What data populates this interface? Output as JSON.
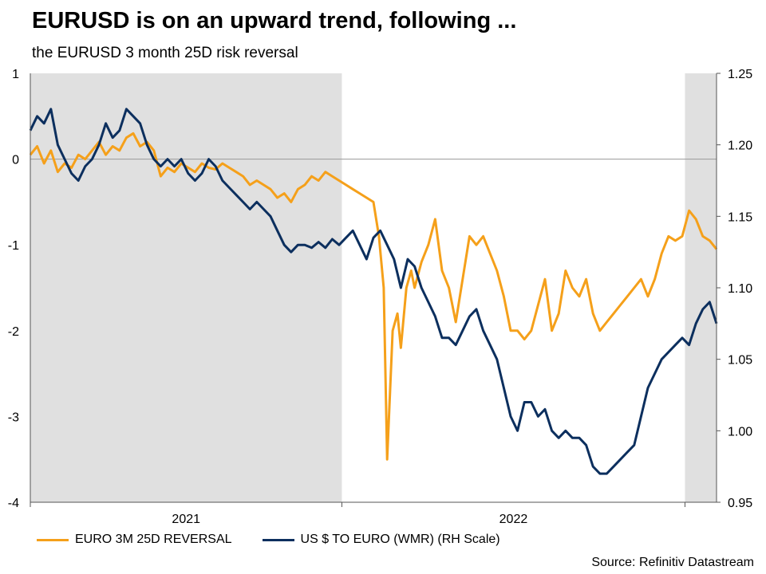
{
  "title": "EURUSD is on an upward trend, following ...",
  "subtitle": "the EURUSD 3 month 25D risk reversal",
  "source": "Source: Refinitiv Datastream",
  "chart_data": {
    "type": "line",
    "x_labels": [
      "2021",
      "2022"
    ],
    "left_axis": {
      "ylim": [
        -4,
        1
      ],
      "ticks": [
        "1",
        "0",
        "-1",
        "-2",
        "-3",
        "-4"
      ],
      "tick_values": [
        1,
        0,
        -1,
        -2,
        -3,
        -4
      ]
    },
    "right_axis": {
      "ylim": [
        0.95,
        1.25
      ],
      "ticks": [
        "1.25",
        "1.20",
        "1.15",
        "1.10",
        "1.05",
        "1.00",
        "0.95"
      ],
      "tick_values": [
        1.25,
        1.2,
        1.15,
        1.1,
        1.05,
        1.0,
        0.95
      ]
    },
    "x_range": [
      0,
      100
    ],
    "year_boundaries": [
      0,
      45.4,
      95.4
    ],
    "shaded_ranges": [
      [
        0,
        45.4
      ],
      [
        95.4,
        100
      ]
    ],
    "series": [
      {
        "name": "EURO 3M 25D REVERSAL",
        "axis": "left",
        "color": "#f5a01a",
        "x": [
          0,
          1,
          2,
          3,
          4,
          5,
          6,
          7,
          8,
          9,
          10,
          11,
          12,
          13,
          14,
          15,
          16,
          17,
          18,
          19,
          20,
          21,
          22,
          23,
          24,
          25,
          26,
          27,
          28,
          29,
          30,
          31,
          32,
          33,
          34,
          35,
          36,
          37,
          38,
          39,
          40,
          41,
          42,
          43,
          44,
          45,
          46,
          47,
          48,
          49,
          50,
          50.8,
          51.5,
          52,
          52.8,
          53.5,
          54,
          54.8,
          55.5,
          56,
          57,
          58,
          59,
          60,
          61,
          62,
          63,
          64,
          65,
          66,
          67,
          68,
          69,
          70,
          71,
          72,
          73,
          74,
          75,
          76,
          77,
          78,
          79,
          80,
          81,
          82,
          83,
          84,
          85,
          86,
          87,
          88,
          89,
          90,
          91,
          92,
          93,
          94,
          95,
          96,
          97,
          98,
          99,
          100
        ],
        "values": [
          0.05,
          0.15,
          -0.05,
          0.1,
          -0.15,
          -0.05,
          -0.1,
          0.05,
          0.0,
          0.1,
          0.2,
          0.05,
          0.15,
          0.1,
          0.25,
          0.3,
          0.15,
          0.2,
          0.1,
          -0.2,
          -0.1,
          -0.15,
          -0.05,
          -0.1,
          -0.15,
          -0.05,
          -0.1,
          -0.12,
          -0.05,
          -0.1,
          -0.15,
          -0.2,
          -0.3,
          -0.25,
          -0.3,
          -0.35,
          -0.45,
          -0.4,
          -0.5,
          -0.35,
          -0.3,
          -0.2,
          -0.25,
          -0.15,
          -0.2,
          -0.25,
          -0.3,
          -0.35,
          -0.4,
          -0.45,
          -0.5,
          -0.9,
          -1.5,
          -3.5,
          -2.0,
          -1.8,
          -2.2,
          -1.5,
          -1.3,
          -1.5,
          -1.2,
          -1.0,
          -0.7,
          -1.3,
          -1.5,
          -1.9,
          -1.4,
          -0.9,
          -1.0,
          -0.9,
          -1.1,
          -1.3,
          -1.6,
          -2.0,
          -2.0,
          -2.1,
          -2.0,
          -1.7,
          -1.4,
          -2.0,
          -1.8,
          -1.3,
          -1.5,
          -1.6,
          -1.4,
          -1.8,
          -2.0,
          -1.9,
          -1.8,
          -1.7,
          -1.6,
          -1.5,
          -1.4,
          -1.6,
          -1.4,
          -1.1,
          -0.9,
          -0.95,
          -0.9,
          -0.6,
          -0.7,
          -0.9,
          -0.95,
          -1.05
        ]
      },
      {
        "name": "US $ TO EURO (WMR) (RH Scale)",
        "axis": "right",
        "color": "#0c2f5e",
        "x": [
          0,
          1,
          2,
          3,
          4,
          5,
          6,
          7,
          8,
          9,
          10,
          11,
          12,
          13,
          14,
          15,
          16,
          17,
          18,
          19,
          20,
          21,
          22,
          23,
          24,
          25,
          26,
          27,
          28,
          29,
          30,
          31,
          32,
          33,
          34,
          35,
          36,
          37,
          38,
          39,
          40,
          41,
          42,
          43,
          44,
          45,
          46,
          47,
          48,
          49,
          50,
          51,
          52,
          53,
          54,
          55,
          56,
          57,
          58,
          59,
          60,
          61,
          62,
          63,
          64,
          65,
          66,
          67,
          68,
          69,
          70,
          71,
          72,
          73,
          74,
          75,
          76,
          77,
          78,
          79,
          80,
          81,
          82,
          83,
          84,
          85,
          86,
          87,
          88,
          89,
          90,
          91,
          92,
          93,
          94,
          95,
          96,
          97,
          98,
          99,
          100
        ],
        "values": [
          1.21,
          1.22,
          1.215,
          1.225,
          1.2,
          1.19,
          1.18,
          1.175,
          1.185,
          1.19,
          1.2,
          1.215,
          1.205,
          1.21,
          1.225,
          1.22,
          1.215,
          1.2,
          1.19,
          1.185,
          1.19,
          1.185,
          1.19,
          1.18,
          1.175,
          1.18,
          1.19,
          1.185,
          1.175,
          1.17,
          1.165,
          1.16,
          1.155,
          1.16,
          1.155,
          1.15,
          1.14,
          1.13,
          1.125,
          1.13,
          1.13,
          1.128,
          1.132,
          1.128,
          1.134,
          1.13,
          1.135,
          1.14,
          1.13,
          1.12,
          1.135,
          1.14,
          1.13,
          1.12,
          1.1,
          1.12,
          1.115,
          1.1,
          1.09,
          1.08,
          1.065,
          1.065,
          1.06,
          1.07,
          1.08,
          1.085,
          1.07,
          1.06,
          1.05,
          1.03,
          1.01,
          1.0,
          1.02,
          1.02,
          1.01,
          1.015,
          1.0,
          0.995,
          1.0,
          0.995,
          0.995,
          0.99,
          0.975,
          0.97,
          0.97,
          0.975,
          0.98,
          0.985,
          0.99,
          1.01,
          1.03,
          1.04,
          1.05,
          1.055,
          1.06,
          1.065,
          1.06,
          1.075,
          1.085,
          1.09,
          1.075
        ]
      }
    ],
    "legend": [
      {
        "label": "EURO 3M 25D REVERSAL",
        "color": "#f5a01a"
      },
      {
        "label": "US $ TO EURO (WMR) (RH Scale)",
        "color": "#0c2f5e"
      }
    ],
    "legend_position": "bottom"
  }
}
